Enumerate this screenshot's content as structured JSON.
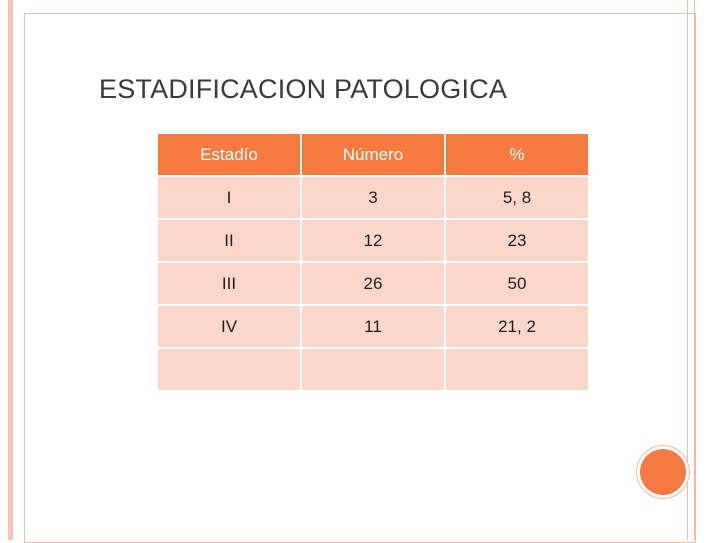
{
  "title": "ESTADIFICACION PATOLOGICA",
  "table": {
    "headers": [
      "Estadío",
      "Número",
      "%"
    ],
    "rows": [
      [
        "I",
        "3",
        "5, 8"
      ],
      [
        "II",
        "12",
        "23"
      ],
      [
        "III",
        "26",
        "50"
      ],
      [
        "IV",
        "11",
        "21, 2"
      ],
      [
        "",
        "",
        ""
      ]
    ]
  },
  "colors": {
    "accent": "#f47a3f",
    "cell_fill": "#fcd6c9",
    "frame": "#f4b9a2"
  }
}
